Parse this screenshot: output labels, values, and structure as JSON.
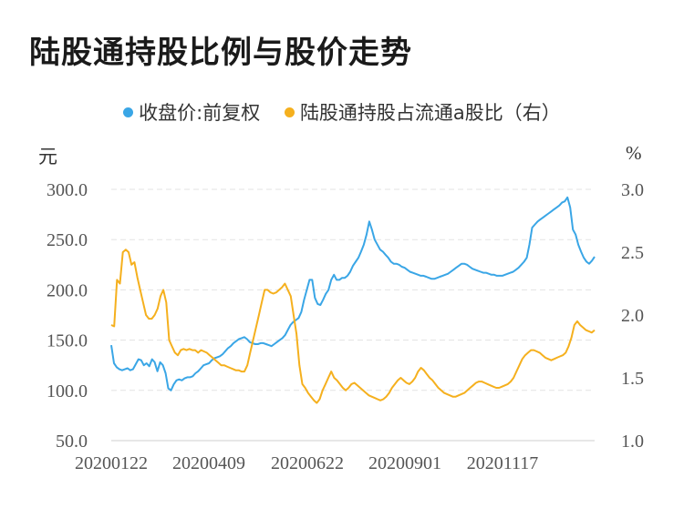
{
  "chart_data": {
    "type": "line",
    "title": "陆股通持股比例与股价走势",
    "left_unit": "元",
    "right_unit": "%",
    "left_ylim": [
      50,
      300
    ],
    "left_ticks": [
      "300.0",
      "250.0",
      "200.0",
      "150.0",
      "100.0",
      "50.0"
    ],
    "right_ylim": [
      1.0,
      3.0
    ],
    "right_ticks": [
      "3.0",
      "2.5",
      "2.0",
      "1.5",
      "1.0"
    ],
    "x_tick_labels": [
      "20200122",
      "20200409",
      "20200622",
      "20200901",
      "20201117"
    ],
    "legend_position": "top-center",
    "grid": true,
    "n_points": 240,
    "series": [
      {
        "name": "收盘价:前复权",
        "axis": "left",
        "color": "#3aa6e6",
        "values": [
          145,
          127,
          123,
          121,
          120,
          121,
          122,
          120,
          121,
          126,
          131,
          130,
          125,
          127,
          124,
          131,
          128,
          119,
          128,
          125,
          117,
          102,
          100,
          106,
          110,
          111,
          110,
          112,
          113,
          113,
          114,
          117,
          119,
          122,
          125,
          126,
          127,
          130,
          132,
          133,
          134,
          136,
          139,
          142,
          144,
          147,
          149,
          151,
          152,
          153,
          151,
          148,
          147,
          146,
          146,
          147,
          147,
          146,
          145,
          144,
          146,
          148,
          150,
          152,
          155,
          160,
          165,
          168,
          170,
          172,
          178,
          190,
          200,
          210,
          210,
          192,
          186,
          185,
          190,
          196,
          200,
          210,
          215,
          210,
          210,
          212,
          212,
          214,
          218,
          224,
          228,
          232,
          238,
          245,
          255,
          268,
          260,
          250,
          245,
          240,
          238,
          235,
          232,
          228,
          226,
          226,
          225,
          223,
          222,
          220,
          218,
          217,
          216,
          215,
          214,
          214,
          213,
          212,
          211,
          211,
          212,
          213,
          214,
          215,
          216,
          218,
          220,
          222,
          224,
          226,
          226,
          225,
          223,
          221,
          220,
          219,
          218,
          217,
          217,
          216,
          215,
          215,
          214,
          214,
          214,
          215,
          216,
          217,
          218,
          220,
          222,
          225,
          228,
          232,
          245,
          262,
          265,
          268,
          270,
          272,
          274,
          276,
          278,
          280,
          282,
          284,
          287,
          288,
          292,
          282,
          260,
          255,
          245,
          238,
          232,
          228,
          226,
          229,
          233
        ]
      },
      {
        "name": "陆股通持股占流通a股比（右）",
        "axis": "right",
        "color": "#f5b01e",
        "values": [
          1.92,
          1.91,
          2.28,
          2.25,
          2.5,
          2.52,
          2.5,
          2.4,
          2.42,
          2.3,
          2.2,
          2.1,
          2.0,
          1.97,
          1.97,
          2.0,
          2.05,
          2.15,
          2.2,
          2.1,
          1.8,
          1.75,
          1.7,
          1.68,
          1.72,
          1.73,
          1.72,
          1.73,
          1.72,
          1.72,
          1.7,
          1.72,
          1.71,
          1.7,
          1.68,
          1.66,
          1.64,
          1.62,
          1.6,
          1.6,
          1.59,
          1.58,
          1.57,
          1.56,
          1.56,
          1.55,
          1.55,
          1.6,
          1.7,
          1.8,
          1.9,
          2.0,
          2.1,
          2.2,
          2.2,
          2.18,
          2.17,
          2.18,
          2.2,
          2.22,
          2.25,
          2.2,
          2.15,
          2.0,
          1.85,
          1.6,
          1.45,
          1.42,
          1.38,
          1.35,
          1.32,
          1.3,
          1.33,
          1.4,
          1.45,
          1.5,
          1.55,
          1.5,
          1.48,
          1.45,
          1.42,
          1.4,
          1.42,
          1.45,
          1.46,
          1.44,
          1.42,
          1.4,
          1.38,
          1.36,
          1.35,
          1.34,
          1.33,
          1.32,
          1.33,
          1.35,
          1.38,
          1.42,
          1.45,
          1.48,
          1.5,
          1.48,
          1.46,
          1.45,
          1.47,
          1.5,
          1.55,
          1.58,
          1.56,
          1.53,
          1.5,
          1.48,
          1.45,
          1.42,
          1.4,
          1.38,
          1.37,
          1.36,
          1.35,
          1.35,
          1.36,
          1.37,
          1.38,
          1.4,
          1.42,
          1.44,
          1.46,
          1.47,
          1.47,
          1.46,
          1.45,
          1.44,
          1.43,
          1.42,
          1.42,
          1.43,
          1.44,
          1.45,
          1.47,
          1.5,
          1.55,
          1.6,
          1.65,
          1.68,
          1.7,
          1.72,
          1.72,
          1.71,
          1.7,
          1.68,
          1.66,
          1.65,
          1.64,
          1.65,
          1.66,
          1.67,
          1.68,
          1.7,
          1.75,
          1.82,
          1.92,
          1.95,
          1.92,
          1.9,
          1.88,
          1.87,
          1.86,
          1.88
        ]
      }
    ]
  }
}
